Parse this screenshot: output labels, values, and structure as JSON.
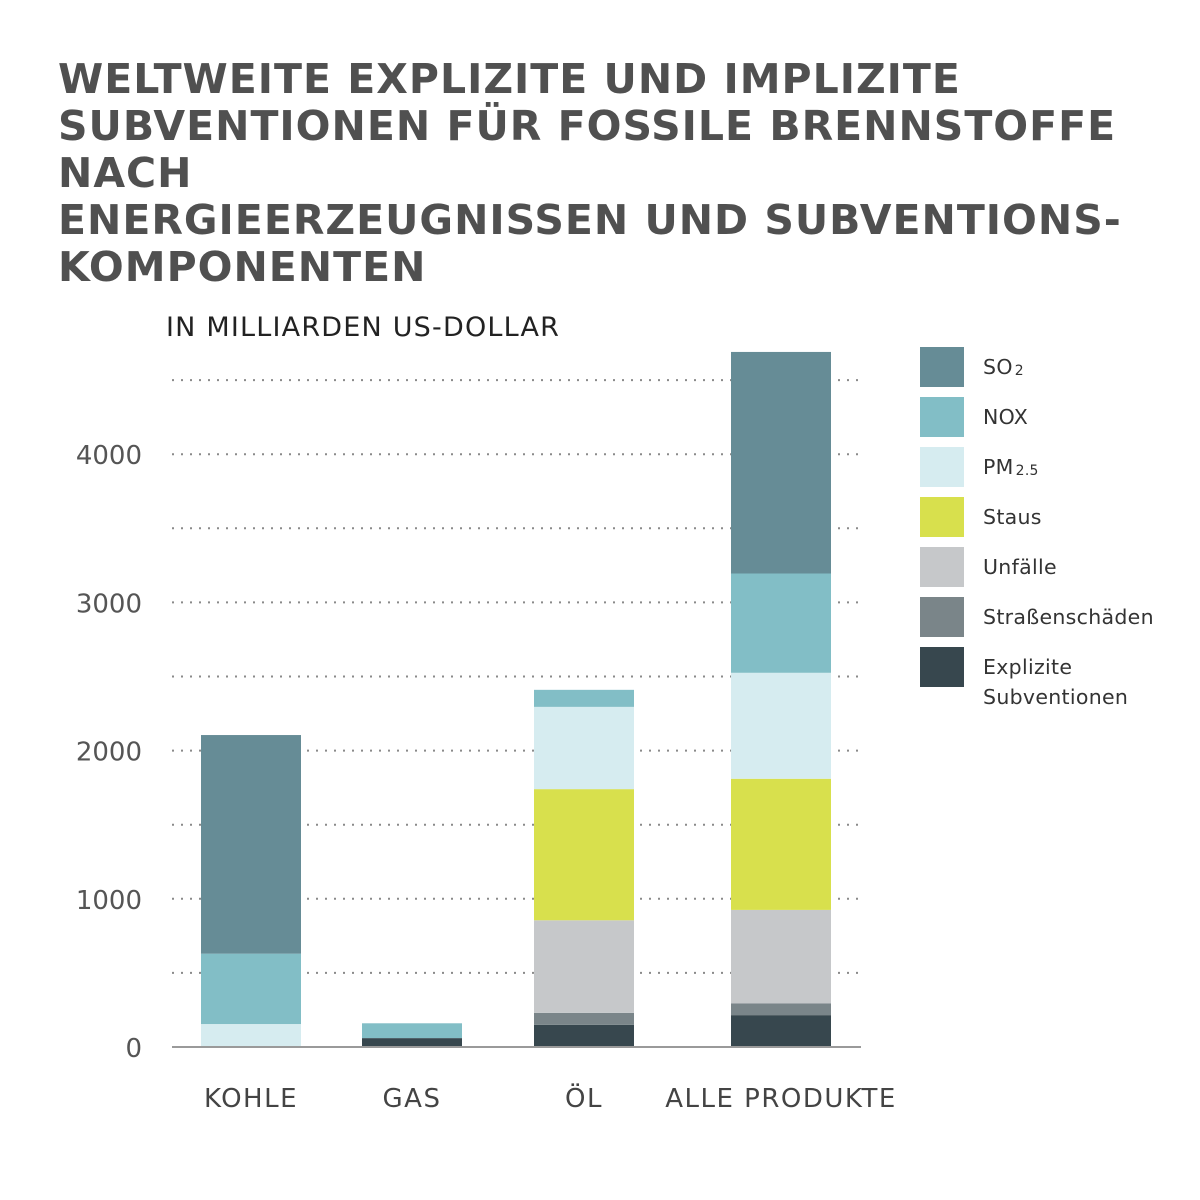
{
  "title": "WELTWEITE EXPLIZITE UND IMPLIZITE SUBVENTIONEN FÜR FOSSILE BRENNSTOFFE NACH ENERGIEERZEUGNISSEN UND SUBVENTIONS-KOMPONENTEN",
  "title_lines": [
    "WELTWEITE EXPLIZITE UND IMPLIZITE",
    "SUBVENTIONEN FÜR FOSSILE BRENNSTOFFE NACH",
    "ENERGIEERZEUGNISSEN UND SUBVENTIONS-",
    "KOMPONENTEN"
  ],
  "unit_label": "IN MILLIARDEN US-DOLLAR",
  "legend": [
    {
      "label": "SO",
      "sub": "2",
      "color": "#668c96"
    },
    {
      "label": "NOX",
      "sub": "",
      "color": "#82bec6"
    },
    {
      "label": "PM",
      "sub": "2.5",
      "color": "#d6ecf0"
    },
    {
      "label": "Staus",
      "sub": "",
      "color": "#d8e04d"
    },
    {
      "label": "Unfälle",
      "sub": "",
      "color": "#c6c8ca"
    },
    {
      "label": "Straßenschäden",
      "sub": "",
      "color": "#7a8589"
    },
    {
      "label": "Explizite Subventionen",
      "sub": "",
      "color": "#37474e"
    }
  ],
  "chart_data": {
    "type": "bar",
    "stacked": true,
    "title": "WELTWEITE EXPLIZITE UND IMPLIZITE SUBVENTIONEN FÜR FOSSILE BRENNSTOFFE NACH ENERGIEERZEUGNISSEN UND SUBVENTIONS-KOMPONENTEN",
    "ylabel": "IN MILLIARDEN US-DOLLAR",
    "xlabel": "",
    "categories": [
      "KOHLE",
      "GAS",
      "ÖL",
      "ALLE PRODUKTE"
    ],
    "ylim": [
      0,
      4500
    ],
    "yticks": [
      0,
      1000,
      2000,
      3000,
      4000
    ],
    "gridlines": [
      500,
      1000,
      1500,
      2000,
      2500,
      3000,
      3500,
      4000,
      4500
    ],
    "grid": true,
    "legend_position": "right",
    "series": [
      {
        "name": "Explizite Subventionen",
        "color": "#37474e",
        "values": [
          0,
          60,
          150,
          215
        ]
      },
      {
        "name": "Straßenschäden",
        "color": "#7a8589",
        "values": [
          0,
          0,
          80,
          80
        ]
      },
      {
        "name": "Unfälle",
        "color": "#c6c8ca",
        "values": [
          0,
          0,
          625,
          630
        ]
      },
      {
        "name": "Staus",
        "color": "#d8e04d",
        "values": [
          0,
          0,
          885,
          885
        ]
      },
      {
        "name": "PM2.5",
        "color": "#d6ecf0",
        "values": [
          155,
          0,
          555,
          715
        ]
      },
      {
        "name": "NOX",
        "color": "#82bec6",
        "values": [
          475,
          100,
          115,
          670
        ]
      },
      {
        "name": "SO2",
        "color": "#668c96",
        "values": [
          1475,
          0,
          0,
          1495
        ]
      }
    ]
  }
}
